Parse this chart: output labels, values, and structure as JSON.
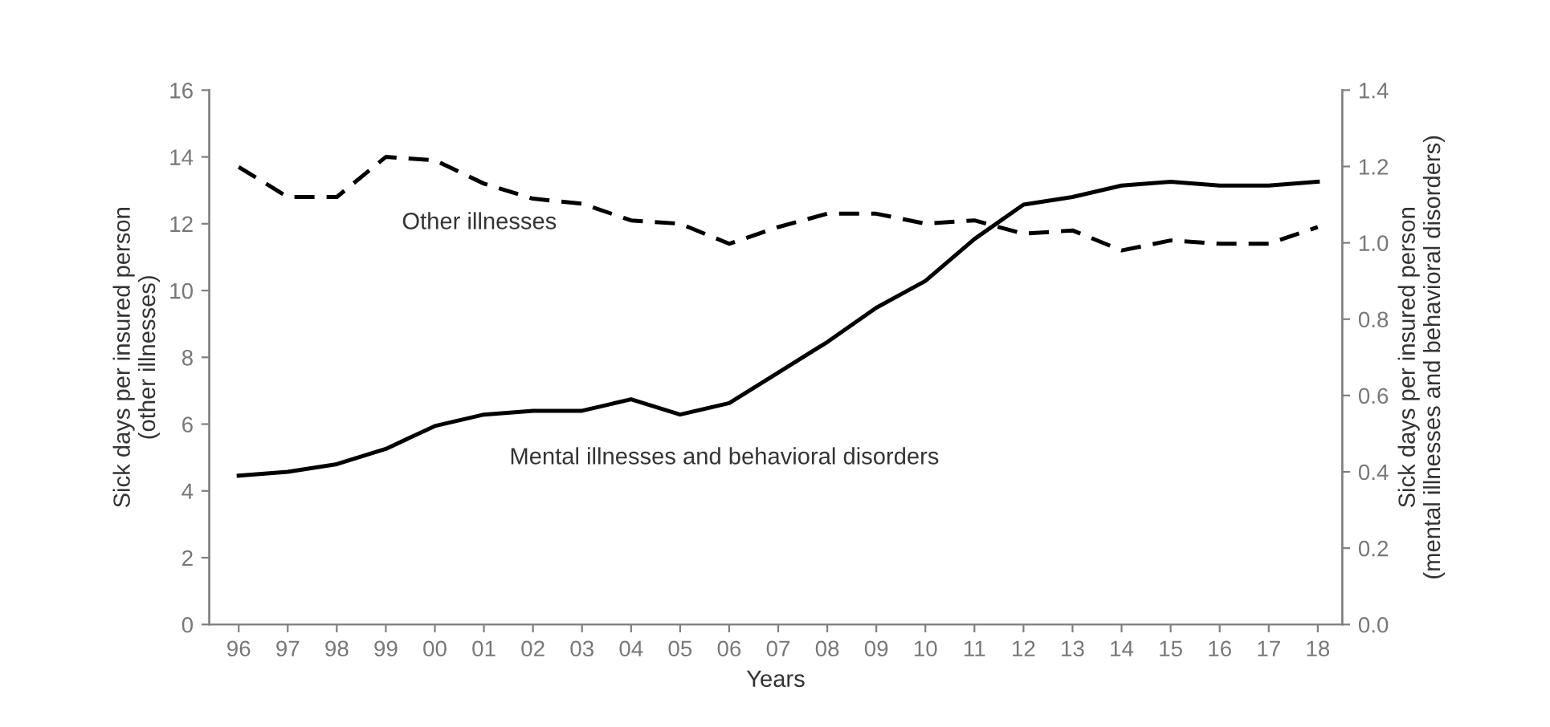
{
  "chart_data": {
    "type": "line",
    "xlabel": "Years",
    "ylabel": "Sick days per insured person\n(other illnesses)",
    "y2label": "Sick days per insured person\n(mental illnesses and behavioral disorders)",
    "categories": [
      "96",
      "97",
      "98",
      "99",
      "00",
      "01",
      "02",
      "03",
      "04",
      "05",
      "06",
      "07",
      "08",
      "09",
      "10",
      "11",
      "12",
      "13",
      "14",
      "15",
      "16",
      "17",
      "18"
    ],
    "series": [
      {
        "name": "Other illnesses",
        "color": "#000000",
        "line_style": "dashed",
        "axis": "y",
        "values": [
          13.7,
          12.8,
          12.8,
          14.0,
          13.9,
          13.2,
          12.75,
          12.6,
          12.1,
          12.0,
          11.4,
          11.9,
          12.3,
          12.3,
          12.0,
          12.1,
          11.7,
          11.8,
          11.2,
          11.5,
          11.4,
          11.4,
          11.9
        ]
      },
      {
        "name": "Mental illnesses and behavioral disorders",
        "color": "#000000",
        "line_style": "solid",
        "axis": "y2",
        "values": [
          0.39,
          0.4,
          0.42,
          0.46,
          0.52,
          0.55,
          0.56,
          0.56,
          0.59,
          0.55,
          0.58,
          0.66,
          0.74,
          0.83,
          0.9,
          1.01,
          1.1,
          1.12,
          1.15,
          1.16,
          1.15,
          1.15,
          1.16
        ]
      }
    ],
    "ylim": [
      0,
      16
    ],
    "yticks": [
      0,
      2,
      4,
      6,
      8,
      10,
      12,
      14,
      16
    ],
    "y2lim": [
      0.0,
      1.4
    ],
    "y2ticks": [
      {
        "value": 0,
        "label": "0.0"
      },
      0.2,
      0.4,
      0.6,
      0.8,
      {
        "value": 1,
        "label": "1.0"
      },
      1.2,
      1.4
    ],
    "grid": false,
    "legend": false
  }
}
